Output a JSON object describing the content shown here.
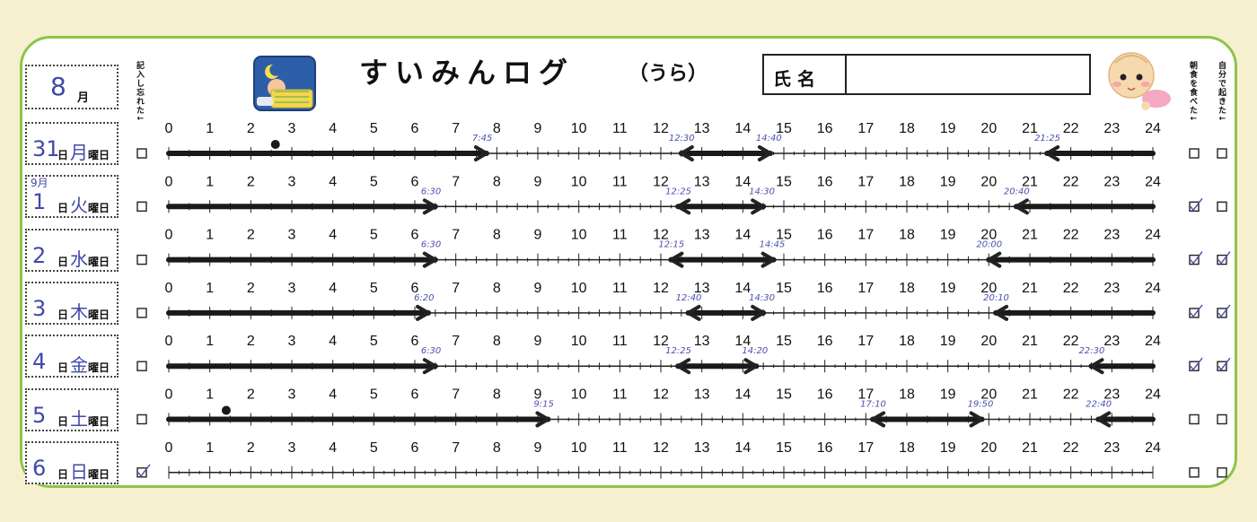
{
  "title": "すいみんログ",
  "subtitle": "（うら）",
  "name_label": "氏 名",
  "name_value": "",
  "month": {
    "value": "8",
    "unit": "月"
  },
  "day_unit": "日",
  "weekday_unit": "曜日",
  "col_forgot": "記入し忘れた↓",
  "col_breakfast": "朝食を食べた↓",
  "col_woke": "自分で起きた↓",
  "hour_labels": [
    "0",
    "1",
    "2",
    "3",
    "4",
    "5",
    "6",
    "7",
    "8",
    "9",
    "10",
    "11",
    "12",
    "13",
    "14",
    "15",
    "16",
    "17",
    "18",
    "19",
    "20",
    "21",
    "22",
    "23",
    "24"
  ],
  "rows": [
    {
      "month_note": "",
      "day": "31",
      "weekday": "月",
      "forgot": false,
      "breakfast": false,
      "woke": false,
      "dot": 2.6,
      "segments": [
        {
          "start": 0,
          "end": 7.75,
          "start_label": "",
          "end_label": "7:45"
        },
        {
          "start": 12.5,
          "end": 14.67,
          "start_label": "12:30",
          "end_label": "14:40"
        },
        {
          "start": 21.42,
          "end": 24,
          "start_label": "21:25",
          "end_label": ""
        }
      ]
    },
    {
      "month_note": "9月",
      "day": "1",
      "weekday": "火",
      "forgot": false,
      "breakfast": true,
      "woke": false,
      "dot": null,
      "segments": [
        {
          "start": 0,
          "end": 6.5,
          "start_label": "",
          "end_label": "6:30"
        },
        {
          "start": 12.42,
          "end": 14.5,
          "start_label": "12:25",
          "end_label": "14:30"
        },
        {
          "start": 20.67,
          "end": 24,
          "start_label": "20:40",
          "end_label": ""
        }
      ]
    },
    {
      "month_note": "",
      "day": "2",
      "weekday": "水",
      "forgot": false,
      "breakfast": true,
      "woke": true,
      "dot": null,
      "segments": [
        {
          "start": 0,
          "end": 6.5,
          "start_label": "",
          "end_label": "6:30"
        },
        {
          "start": 12.25,
          "end": 14.75,
          "start_label": "12:15",
          "end_label": "14:45"
        },
        {
          "start": 20,
          "end": 24,
          "start_label": "20:00",
          "end_label": ""
        }
      ]
    },
    {
      "month_note": "",
      "day": "3",
      "weekday": "木",
      "forgot": false,
      "breakfast": true,
      "woke": true,
      "dot": null,
      "segments": [
        {
          "start": 0,
          "end": 6.33,
          "start_label": "",
          "end_label": "6:20"
        },
        {
          "start": 12.67,
          "end": 14.5,
          "start_label": "12:40",
          "end_label": "14:30"
        },
        {
          "start": 20.17,
          "end": 24,
          "start_label": "20:10",
          "end_label": ""
        }
      ]
    },
    {
      "month_note": "",
      "day": "4",
      "weekday": "金",
      "forgot": false,
      "breakfast": true,
      "woke": true,
      "dot": null,
      "segments": [
        {
          "start": 0,
          "end": 6.5,
          "start_label": "",
          "end_label": "6:30"
        },
        {
          "start": 12.42,
          "end": 14.33,
          "start_label": "12:25",
          "end_label": "14:20"
        },
        {
          "start": 22.5,
          "end": 24,
          "start_label": "22:30",
          "end_label": ""
        }
      ]
    },
    {
      "month_note": "",
      "day": "5",
      "weekday": "土",
      "forgot": false,
      "breakfast": false,
      "woke": false,
      "dot": 1.4,
      "segments": [
        {
          "start": 0,
          "end": 9.25,
          "start_label": "",
          "end_label": "9:15"
        },
        {
          "start": 17.17,
          "end": 19.83,
          "start_label": "17:10",
          "end_label": "19:50"
        },
        {
          "start": 22.67,
          "end": 24,
          "start_label": "22:40",
          "end_label": ""
        }
      ]
    },
    {
      "month_note": "",
      "day": "6",
      "weekday": "日",
      "forgot": true,
      "breakfast": false,
      "woke": false,
      "dot": null,
      "segments": []
    }
  ]
}
